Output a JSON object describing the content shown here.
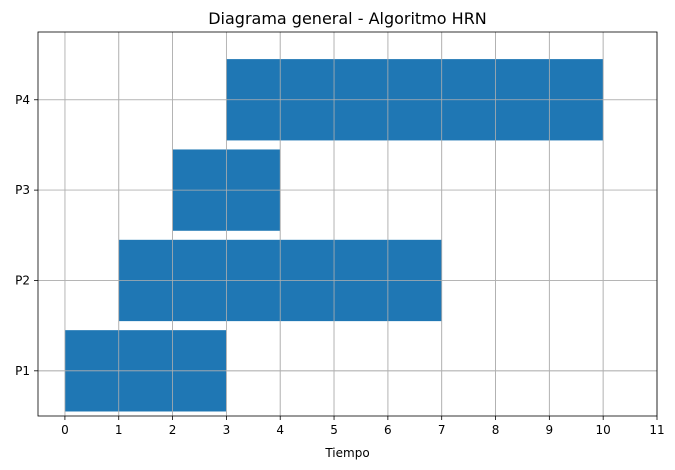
{
  "chart_data": {
    "type": "gantt",
    "title": "Diagrama general - Algoritmo HRN",
    "xlabel": "Tiempo",
    "ylabel": "",
    "xlim": [
      -0.5,
      11
    ],
    "xticks": [
      0,
      1,
      2,
      3,
      4,
      5,
      6,
      7,
      8,
      9,
      10,
      11
    ],
    "categories": [
      "P1",
      "P2",
      "P3",
      "P4"
    ],
    "tasks": [
      {
        "label": "P1",
        "start": 0,
        "duration": 3
      },
      {
        "label": "P2",
        "start": 1,
        "duration": 6
      },
      {
        "label": "P3",
        "start": 2,
        "duration": 2
      },
      {
        "label": "P4",
        "start": 3,
        "duration": 7
      }
    ],
    "grid": true,
    "bar_color": "#1f77b4"
  }
}
